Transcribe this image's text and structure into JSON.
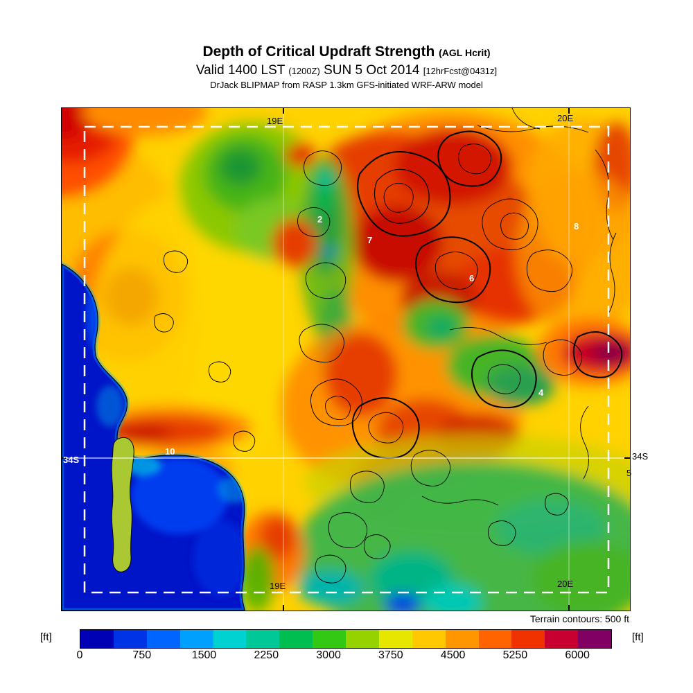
{
  "header": {
    "title": "Depth of Critical Updraft Strength",
    "title_suffix": "(AGL Hcrit)",
    "valid_prefix": "Valid 1400 LST",
    "valid_zulu": "(1200Z)",
    "valid_date": "SUN 5 Oct 2014",
    "valid_fcst": "[12hrFcst@0431z]",
    "model": "DrJack BLIPMAP from RASP 1.3km GFS-initiated WRF-ARW model"
  },
  "map": {
    "terrain_note": "Terrain contours: 500 ft",
    "grid_labels": {
      "top_west": "19E",
      "top_east": "20E",
      "bottom_west": "19E",
      "bottom_east": "20E",
      "right_lat": "34S",
      "left_lat": "34S"
    },
    "site_markers": [
      {
        "label": "2"
      },
      {
        "label": "7"
      },
      {
        "label": "6"
      },
      {
        "label": "8"
      },
      {
        "label": "4"
      },
      {
        "label": "10"
      },
      {
        "label": "5"
      }
    ]
  },
  "colorbar": {
    "unit_left": "[ft]",
    "unit_right": "[ft]",
    "ticks": [
      "0",
      "750",
      "1500",
      "2250",
      "3000",
      "3750",
      "4500",
      "5250",
      "6000"
    ],
    "tick_values": [
      0,
      750,
      1500,
      2250,
      3000,
      3750,
      4500,
      5250,
      6000
    ],
    "max_value": 6400,
    "colors": [
      "#0000b4",
      "#0032e6",
      "#0064ff",
      "#00a0ff",
      "#00d2d2",
      "#00c896",
      "#00be50",
      "#32c814",
      "#96d200",
      "#e6e600",
      "#ffc800",
      "#ff9600",
      "#ff6400",
      "#f03200",
      "#c80032",
      "#800064"
    ],
    "ocean_color": "#0014c8",
    "contour_color": "#000000",
    "domain_box_color": "#ffffff"
  },
  "chart_data": {
    "type": "heatmap",
    "title": "Depth of Critical Updraft Strength (AGL Hcrit)",
    "valid": "Valid 1400 LST (1200Z) SUN 5 Oct 2014 [12hrFcst@0431z]",
    "source": "DrJack BLIPMAP from RASP 1.3km GFS-initiated WRF-ARW model",
    "units": "ft",
    "scale_ticks": [
      0,
      750,
      1500,
      2250,
      3000,
      3750,
      4500,
      5250,
      6000
    ],
    "scale_range": [
      0,
      6400
    ],
    "overlay": "Terrain contours: 500 ft",
    "grid_lines": {
      "longitudes": [
        "19E",
        "20E"
      ],
      "latitudes": [
        "34S"
      ]
    },
    "site_markers": [
      "2",
      "4",
      "5",
      "6",
      "7",
      "8",
      "10"
    ]
  }
}
